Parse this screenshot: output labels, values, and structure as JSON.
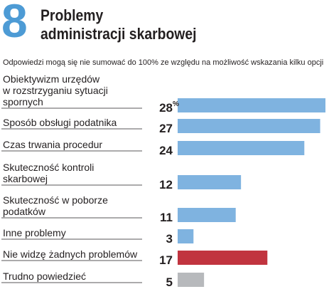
{
  "header": {
    "number": "8",
    "title_line1": "Problemy",
    "title_line2": "administracji skarbowej",
    "subtitle": "Odpowiedzi mogą się nie sumować do 100% ze względu na możliwość wskazania kilku opcji"
  },
  "colors": {
    "accent": "#4d9bd5",
    "bar_blue": "#7fb3e0",
    "bar_red": "#c1343f",
    "bar_gray": "#b7b9bc"
  },
  "chart_data": {
    "type": "bar",
    "orientation": "horizontal",
    "title": "Problemy administracji skarbowej",
    "subtitle": "Odpowiedzi mogą się nie sumować do 100% ze względu na możliwość wskazania kilku opcji",
    "categories": [
      [
        "Obiektywizm urzędów",
        "w rozstrzyganiu sytuacji",
        "spornych"
      ],
      [
        "Sposób obsługi podatnika"
      ],
      [
        "Czas trwania procedur"
      ],
      [
        "Skuteczność kontroli",
        "skarbowej"
      ],
      [
        "Skuteczność w poborze",
        "podatków"
      ],
      [
        "Inne problemy"
      ],
      [
        "Nie widzę żadnych problemów"
      ],
      [
        "Trudno powiedzieć"
      ]
    ],
    "values": [
      28,
      27,
      24,
      12,
      11,
      3,
      17,
      5
    ],
    "value_labels": [
      "28",
      "27",
      "24",
      "12",
      "11",
      "3",
      "17",
      "5"
    ],
    "unit_suffix_first": "%",
    "bar_colors": [
      "bar_blue",
      "bar_blue",
      "bar_blue",
      "bar_blue",
      "bar_blue",
      "bar_blue",
      "bar_red",
      "bar_gray"
    ],
    "xlim": [
      0,
      28
    ],
    "grid": false,
    "legend": "none"
  }
}
